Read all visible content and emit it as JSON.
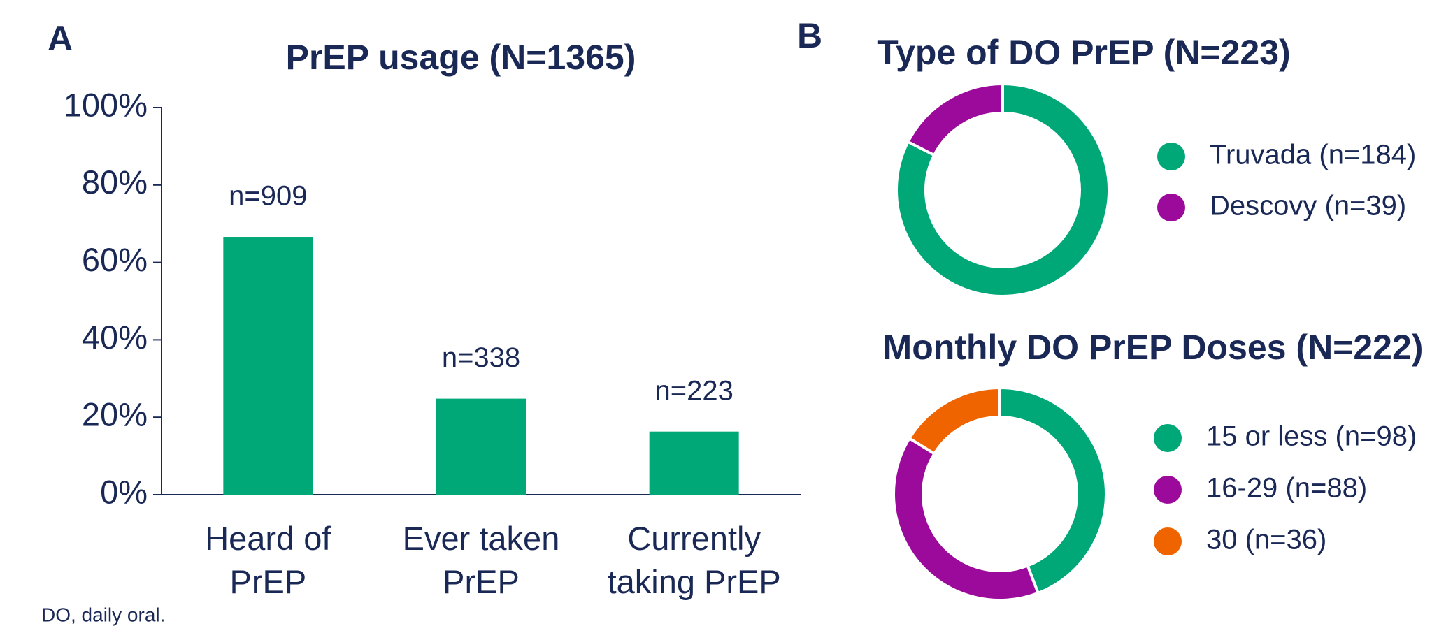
{
  "panel_labels": [
    "A",
    "B"
  ],
  "footnote": "DO, daily oral.",
  "chart_data": [
    {
      "type": "bar",
      "title": "PrEP usage (N=1365)",
      "categories": [
        "Heard of PrEP",
        "Ever taken PrEP",
        "Currently taking PrEP"
      ],
      "values": [
        66.6,
        24.8,
        16.3
      ],
      "annotations": [
        "n=909",
        "n=338",
        "n=223"
      ],
      "color": "#00a878",
      "ylim": [
        0,
        100
      ],
      "yticks": [
        {
          "value": 0,
          "label": "0%"
        },
        {
          "value": 20,
          "label": "20%"
        },
        {
          "value": 40,
          "label": "40%"
        },
        {
          "value": 60,
          "label": "60%"
        },
        {
          "value": 80,
          "label": "80%"
        },
        {
          "value": 100,
          "label": "100%"
        }
      ],
      "grid": false
    },
    {
      "type": "donut",
      "title": "Type of DO PrEP (N=223)",
      "categories": [
        "Truvada (n=184)",
        "Descovy (n=39)"
      ],
      "values": [
        184,
        39
      ],
      "colors": [
        "#00a878",
        "#9b0a9b"
      ]
    },
    {
      "type": "donut",
      "title": "Monthly DO PrEP Doses (N=222)",
      "categories": [
        "15 or less (n=98)",
        "16-29 (n=88)",
        "30 (n=36)"
      ],
      "values": [
        98,
        88,
        36
      ],
      "colors": [
        "#00a878",
        "#9b0a9b",
        "#f06400"
      ]
    }
  ]
}
